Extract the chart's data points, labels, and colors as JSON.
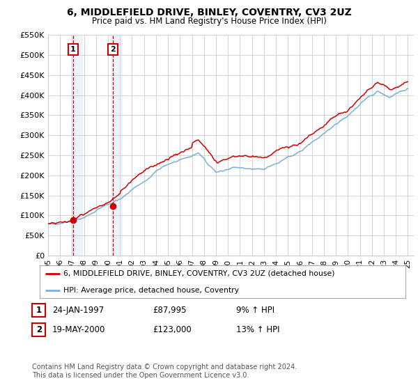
{
  "title": "6, MIDDLEFIELD DRIVE, BINLEY, COVENTRY, CV3 2UZ",
  "subtitle": "Price paid vs. HM Land Registry's House Price Index (HPI)",
  "ylim": [
    0,
    550000
  ],
  "yticks": [
    0,
    50000,
    100000,
    150000,
    200000,
    250000,
    300000,
    350000,
    400000,
    450000,
    500000,
    550000
  ],
  "ytick_labels": [
    "£0",
    "£50K",
    "£100K",
    "£150K",
    "£200K",
    "£250K",
    "£300K",
    "£350K",
    "£400K",
    "£450K",
    "£500K",
    "£550K"
  ],
  "sale1_date": 1997.07,
  "sale1_price": 87995,
  "sale2_date": 2000.38,
  "sale2_price": 123000,
  "line_color_price": "#cc0000",
  "line_color_hpi": "#7bafd4",
  "shade_color": "#ccddf5",
  "grid_color": "#cccccc",
  "background_color": "#ffffff",
  "legend_label_price": "6, MIDDLEFIELD DRIVE, BINLEY, COVENTRY, CV3 2UZ (detached house)",
  "legend_label_hpi": "HPI: Average price, detached house, Coventry",
  "table_row1": [
    "1",
    "24-JAN-1997",
    "£87,995",
    "9% ↑ HPI"
  ],
  "table_row2": [
    "2",
    "19-MAY-2000",
    "£123,000",
    "13% ↑ HPI"
  ],
  "footnote": "Contains HM Land Registry data © Crown copyright and database right 2024.\nThis data is licensed under the Open Government Licence v3.0.",
  "xmin": 1995.0,
  "xmax": 2025.5
}
